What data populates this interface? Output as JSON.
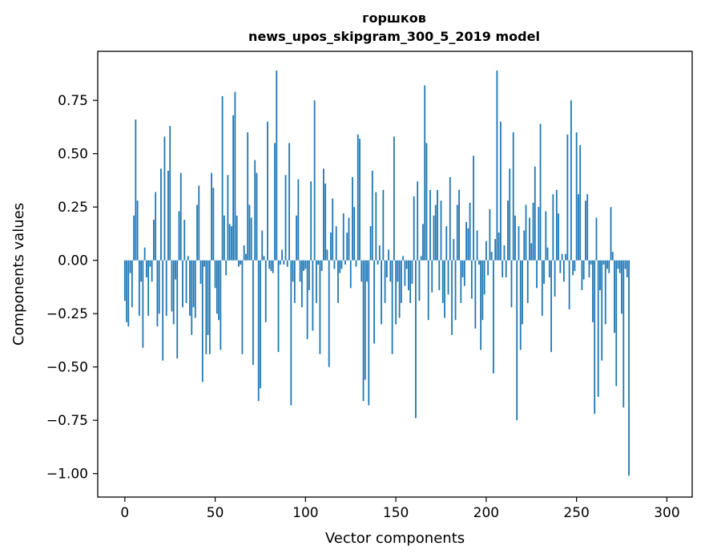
{
  "chart_data": {
    "type": "bar",
    "title": "горшков",
    "subtitle": "news_upos_skipgram_300_5_2019 model",
    "xlabel": "Vector components",
    "ylabel": "Components values",
    "xlim": [
      -15,
      314
    ],
    "ylim": [
      -1.11,
      0.98
    ],
    "xticks": [
      0,
      50,
      100,
      150,
      200,
      250,
      300
    ],
    "yticks": [
      -1.0,
      -0.75,
      -0.5,
      -0.25,
      0.0,
      0.25,
      0.5,
      0.75
    ],
    "ytick_labels": [
      "−1.00",
      "−0.75",
      "−0.50",
      "−0.25",
      "0.00",
      "0.25",
      "0.50",
      "0.75"
    ],
    "bar_color": "#1f77b4",
    "grid": false,
    "values": [
      -0.19,
      -0.29,
      -0.31,
      -0.06,
      -0.22,
      0.21,
      0.66,
      0.28,
      -0.26,
      -0.1,
      -0.41,
      0.06,
      -0.08,
      -0.26,
      -0.03,
      -0.1,
      0.19,
      0.32,
      -0.31,
      -0.25,
      0.43,
      -0.47,
      0.58,
      -0.26,
      0.42,
      0.63,
      -0.24,
      -0.3,
      -0.09,
      -0.46,
      0.23,
      0.41,
      -0.22,
      0.19,
      -0.2,
      0.02,
      -0.26,
      -0.35,
      -0.22,
      -0.27,
      0.26,
      0.35,
      -0.11,
      -0.57,
      -0.03,
      -0.44,
      -0.35,
      -0.44,
      0.41,
      0.34,
      -0.13,
      -0.25,
      -0.28,
      -0.42,
      0.77,
      0.21,
      -0.07,
      0.4,
      0.17,
      0.16,
      0.68,
      0.79,
      0.21,
      -0.03,
      -0.02,
      -0.44,
      0.07,
      0.03,
      0.6,
      0.26,
      0.2,
      -0.49,
      0.47,
      0.41,
      -0.66,
      -0.6,
      0.14,
      0.02,
      -0.29,
      0.65,
      -0.04,
      -0.05,
      -0.06,
      0.55,
      0.89,
      -0.43,
      -0.02,
      0.05,
      -0.02,
      0.4,
      -0.03,
      0.55,
      -0.68,
      -0.1,
      -0.2,
      0.21,
      0.38,
      -0.1,
      -0.22,
      -0.05,
      -0.04,
      -0.37,
      -0.14,
      0.37,
      -0.33,
      0.75,
      -0.2,
      -0.02,
      -0.44,
      -0.05,
      0.43,
      0.36,
      0.05,
      -0.5,
      0.13,
      0.29,
      -0.04,
      0.16,
      -0.2,
      -0.06,
      -0.04,
      0.22,
      -0.02,
      0.13,
      0.2,
      -0.13,
      0.39,
      0.25,
      -0.03,
      0.59,
      0.57,
      -0.1,
      -0.66,
      -0.56,
      -0.1,
      -0.68,
      0.16,
      0.42,
      -0.39,
      0.32,
      -0.02,
      0.07,
      -0.3,
      0.33,
      -0.2,
      -0.08,
      0.05,
      -0.1,
      -0.44,
      0.58,
      -0.3,
      -0.1,
      -0.27,
      -0.2,
      0.02,
      -0.12,
      -0.04,
      -0.14,
      -0.2,
      -0.11,
      0.3,
      -0.74,
      0.37,
      -0.19,
      0.02,
      0.17,
      0.82,
      0.55,
      -0.28,
      0.33,
      -0.15,
      0.21,
      0.26,
      0.33,
      -0.14,
      0.28,
      -0.2,
      -0.27,
      0.16,
      -0.16,
      0.39,
      -0.35,
      0.1,
      -0.28,
      0.26,
      0.33,
      -0.2,
      -0.08,
      -0.12,
      0.18,
      0.15,
      0.27,
      -0.18,
      0.49,
      -0.32,
      0.14,
      -0.02,
      -0.42,
      -0.28,
      -0.16,
      0.09,
      -0.07,
      0.24,
      0.04,
      -0.53,
      0.1,
      0.89,
      0.13,
      0.65,
      -0.08,
      0.07,
      -0.08,
      0.28,
      0.43,
      -0.22,
      0.6,
      0.21,
      -0.75,
      0.16,
      -0.42,
      -0.3,
      0.14,
      0.26,
      -0.2,
      0.2,
      0.08,
      0.27,
      0.44,
      -0.13,
      0.25,
      0.64,
      -0.26,
      -0.11,
      0.23,
      0.06,
      -0.08,
      -0.43,
      0.31,
      -0.17,
      0.33,
      0.22,
      -0.06,
      0.03,
      -0.1,
      0.03,
      0.59,
      -0.23,
      0.75,
      -0.07,
      -0.05,
      0.6,
      0.31,
      0.54,
      -0.14,
      -0.09,
      0.28,
      0.31,
      -0.08,
      -0.02,
      -0.29,
      -0.72,
      0.2,
      -0.64,
      -0.14,
      -0.47,
      -0.02,
      -0.3,
      -0.04,
      -0.06,
      0.25,
      0.04,
      -0.34,
      -0.59,
      -0.04,
      -0.06,
      -0.25,
      -0.69,
      -0.04,
      -0.08,
      -1.01
    ]
  }
}
